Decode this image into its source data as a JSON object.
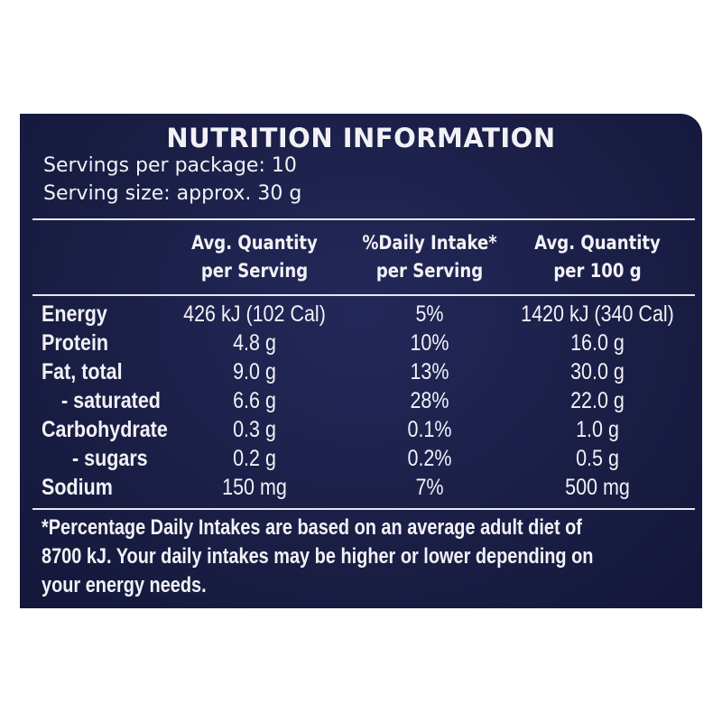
{
  "label": {
    "title": "NUTRITION INFORMATION",
    "servings_per_package": "Servings per package: 10",
    "serving_size": "Serving size: approx. 30 g"
  },
  "table": {
    "columns": [
      {
        "line1": "Avg. Quantity",
        "line2": "per Serving"
      },
      {
        "line1": "%Daily Intake*",
        "line2": "per Serving"
      },
      {
        "line1": "Avg. Quantity",
        "line2": "per 100 g"
      }
    ],
    "rows": [
      {
        "name": "Energy",
        "per_serving": "426 kJ (102 Cal)",
        "daily_intake": "5%",
        "per_100g": "1420 kJ (340 Cal)"
      },
      {
        "name": "Protein",
        "per_serving": "4.8 g",
        "daily_intake": "10%",
        "per_100g": "16.0 g"
      },
      {
        "name": "Fat, total",
        "per_serving": "9.0 g",
        "daily_intake": "13%",
        "per_100g": "30.0 g"
      },
      {
        "name": "- saturated",
        "per_serving": "6.6 g",
        "daily_intake": "28%",
        "per_100g": "22.0 g"
      },
      {
        "name": "Carbohydrate",
        "per_serving": "0.3 g",
        "daily_intake": "0.1%",
        "per_100g": "1.0 g"
      },
      {
        "name": "- sugars",
        "per_serving": "0.2 g",
        "daily_intake": "0.2%",
        "per_100g": "0.5 g"
      },
      {
        "name": "Sodium",
        "per_serving": "150 mg",
        "daily_intake": "7%",
        "per_100g": "500 mg"
      }
    ]
  },
  "footnote": {
    "line1": "*Percentage Daily Intakes are based on an average adult diet of",
    "line2": "8700 kJ. Your daily intakes may be higher or lower depending on",
    "line3": "your energy needs."
  },
  "colors": {
    "panel_background": "#1b1f45",
    "text": "#f2f2f6",
    "rule": "#e8e8ef"
  }
}
